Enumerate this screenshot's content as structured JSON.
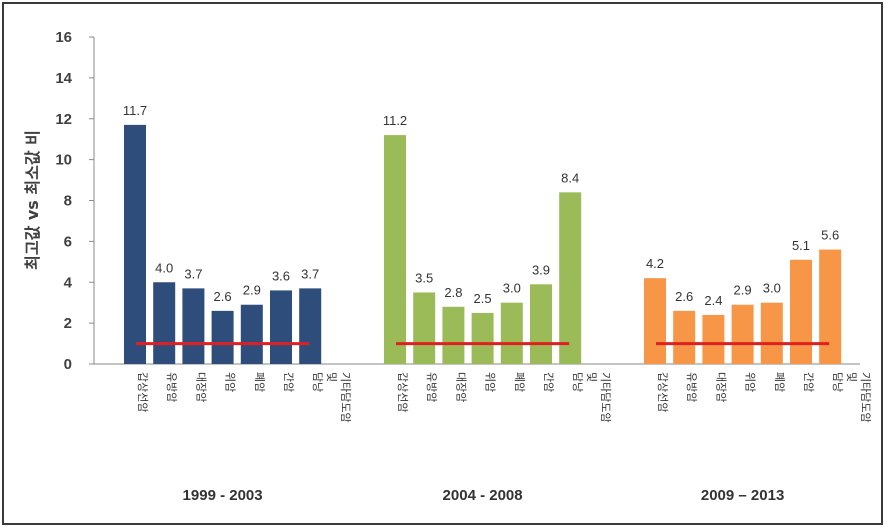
{
  "chart_data": {
    "type": "bar",
    "title": "",
    "ylabel": "최고값 vs 최소값 비",
    "ylim": [
      0,
      16
    ],
    "yticks": [
      "0",
      "2",
      "4",
      "6",
      "8",
      "10",
      "12",
      "14",
      "16"
    ],
    "categories": [
      "갑상선암",
      "유방암",
      "대장암",
      "위암",
      "폐암",
      "간암",
      "담낭 및 기타담도암"
    ],
    "reference_line": 1,
    "reference_color": "#e02020",
    "groups": [
      {
        "name": "1999 - 2003",
        "color": "#2e4d7b",
        "values": [
          11.7,
          4.0,
          3.7,
          2.6,
          2.9,
          3.6,
          3.7
        ],
        "labels": [
          "11.7",
          "4.0",
          "3.7",
          "2.6",
          "2.9",
          "3.6",
          "3.7"
        ]
      },
      {
        "name": "2004 - 2008",
        "color": "#9bbb59",
        "values": [
          11.2,
          3.5,
          2.8,
          2.5,
          3.0,
          3.9,
          8.4
        ],
        "labels": [
          "11.2",
          "3.5",
          "2.8",
          "2.5",
          "3.0",
          "3.9",
          "8.4"
        ]
      },
      {
        "name": "2009 – 2013",
        "color": "#f79646",
        "values": [
          4.2,
          2.6,
          2.4,
          2.9,
          3.0,
          5.1,
          5.6
        ],
        "labels": [
          "4.2",
          "2.6",
          "2.4",
          "2.9",
          "3.0",
          "5.1",
          "5.6"
        ]
      }
    ],
    "grid": false,
    "legend": "none"
  }
}
